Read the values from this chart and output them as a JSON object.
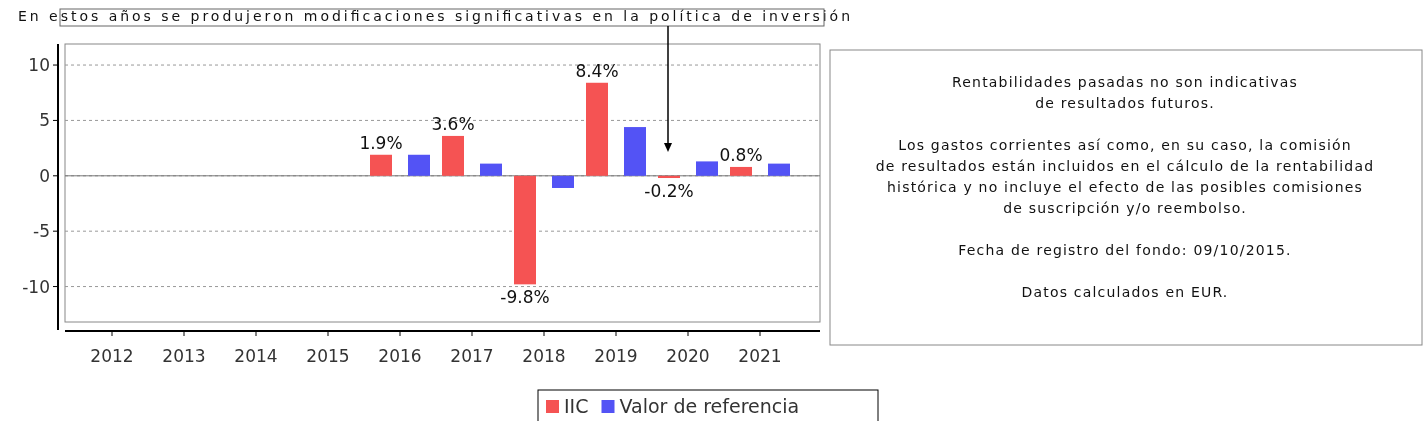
{
  "chart_data": {
    "type": "bar",
    "categories": [
      "2012",
      "2013",
      "2014",
      "2015",
      "2016",
      "2017",
      "2018",
      "2019",
      "2020",
      "2021"
    ],
    "series": [
      {
        "name": "IIC",
        "color": "#f55353",
        "values": [
          null,
          null,
          null,
          null,
          1.9,
          3.6,
          -9.8,
          8.4,
          -0.2,
          0.8
        ],
        "value_labels": [
          null,
          null,
          null,
          null,
          "1.9%",
          "3.6%",
          "-9.8%",
          "8.4%",
          "-0.2%",
          "0.8%"
        ]
      },
      {
        "name": "Valor de referencia",
        "color": "#5353f5",
        "values": [
          null,
          null,
          null,
          null,
          1.9,
          1.1,
          -1.1,
          4.4,
          1.3,
          1.1
        ]
      }
    ],
    "ylim": [
      -13.2,
      11.9
    ],
    "yticks": [
      -10,
      -5,
      0,
      5,
      10
    ],
    "grid": "y",
    "legend": "bottom",
    "annotations": [
      "En estos años se produjeron modificaciones significativas en la política de inversión",
      "Rentabilidades pasadas no son indicativas\nde resultados futuros.",
      "Los gastos corrientes así como, en su caso, la comisión\nde resultados están incluidos en el cálculo de la rentabilidad\nhistórica y no incluye el efecto de las posibles comisiones\nde suscripción y/o reembolso.",
      "Fecha de registro del fondo: 09/10/2015.",
      "Datos calculados en EUR."
    ]
  }
}
